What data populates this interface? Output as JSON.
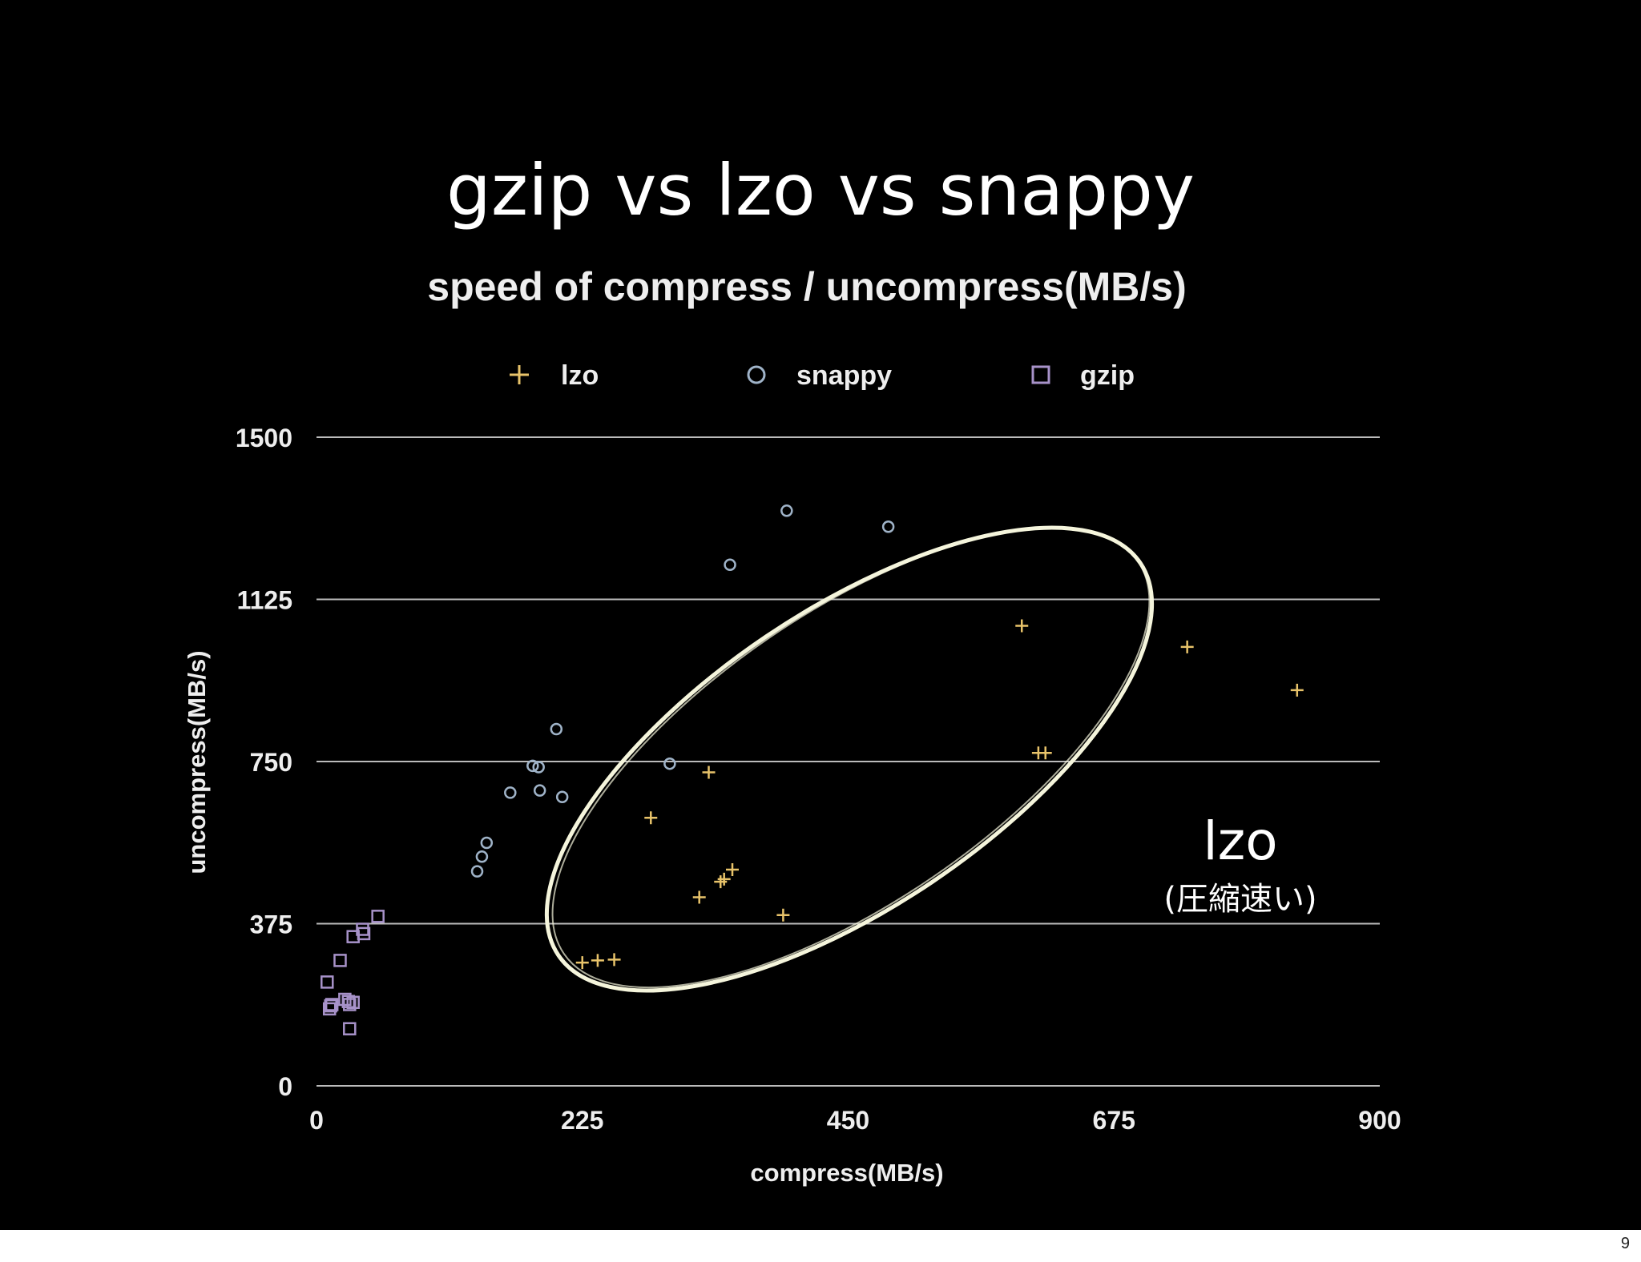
{
  "slide": {
    "title": "gzip vs lzo vs snappy",
    "page_number": "9",
    "annotation": {
      "label": "lzo",
      "sublabel": "(圧縮速い)",
      "ellipse_color": "#f5f5dc"
    }
  },
  "colors": {
    "background": "#000000",
    "text": "#ffffff",
    "grid": "#bbbbbb",
    "lzo": "#e8c36a",
    "snappy": "#9fb3c8",
    "gzip": "#a792c9"
  },
  "chart_data": {
    "type": "scatter",
    "title": "speed of compress / uncompress(MB/s)",
    "xlabel": "compress(MB/s)",
    "ylabel": "uncompress(MB/s)",
    "xlim": [
      0,
      900
    ],
    "ylim": [
      0,
      1500
    ],
    "xticks": [
      "0",
      "225",
      "450",
      "675",
      "900"
    ],
    "yticks": [
      "0",
      "375",
      "750",
      "1125",
      "1500"
    ],
    "grid": "horizontal",
    "legend_position": "top",
    "series": [
      {
        "name": "lzo",
        "marker": "plus",
        "points": [
          [
            225,
            285
          ],
          [
            238,
            290
          ],
          [
            252,
            292
          ],
          [
            283,
            620
          ],
          [
            324,
            436
          ],
          [
            332,
            725
          ],
          [
            342,
            472
          ],
          [
            345,
            478
          ],
          [
            352,
            500
          ],
          [
            395,
            395
          ],
          [
            597,
            1064
          ],
          [
            611,
            770
          ],
          [
            617,
            770
          ],
          [
            737,
            1015
          ],
          [
            830,
            915
          ]
        ]
      },
      {
        "name": "snappy",
        "marker": "circle",
        "points": [
          [
            136,
            496
          ],
          [
            140,
            530
          ],
          [
            144,
            562
          ],
          [
            164,
            678
          ],
          [
            183,
            740
          ],
          [
            188,
            737
          ],
          [
            189,
            683
          ],
          [
            203,
            825
          ],
          [
            208,
            668
          ],
          [
            299,
            745
          ],
          [
            350,
            1205
          ],
          [
            398,
            1330
          ],
          [
            484,
            1293
          ]
        ]
      },
      {
        "name": "gzip",
        "marker": "square",
        "points": [
          [
            9,
            240
          ],
          [
            11,
            178
          ],
          [
            12,
            185
          ],
          [
            13,
            188
          ],
          [
            20,
            290
          ],
          [
            24,
            200
          ],
          [
            27,
            195
          ],
          [
            28,
            188
          ],
          [
            28,
            132
          ],
          [
            31,
            193
          ],
          [
            31,
            345
          ],
          [
            39,
            362
          ],
          [
            40,
            352
          ],
          [
            52,
            392
          ]
        ]
      }
    ]
  }
}
